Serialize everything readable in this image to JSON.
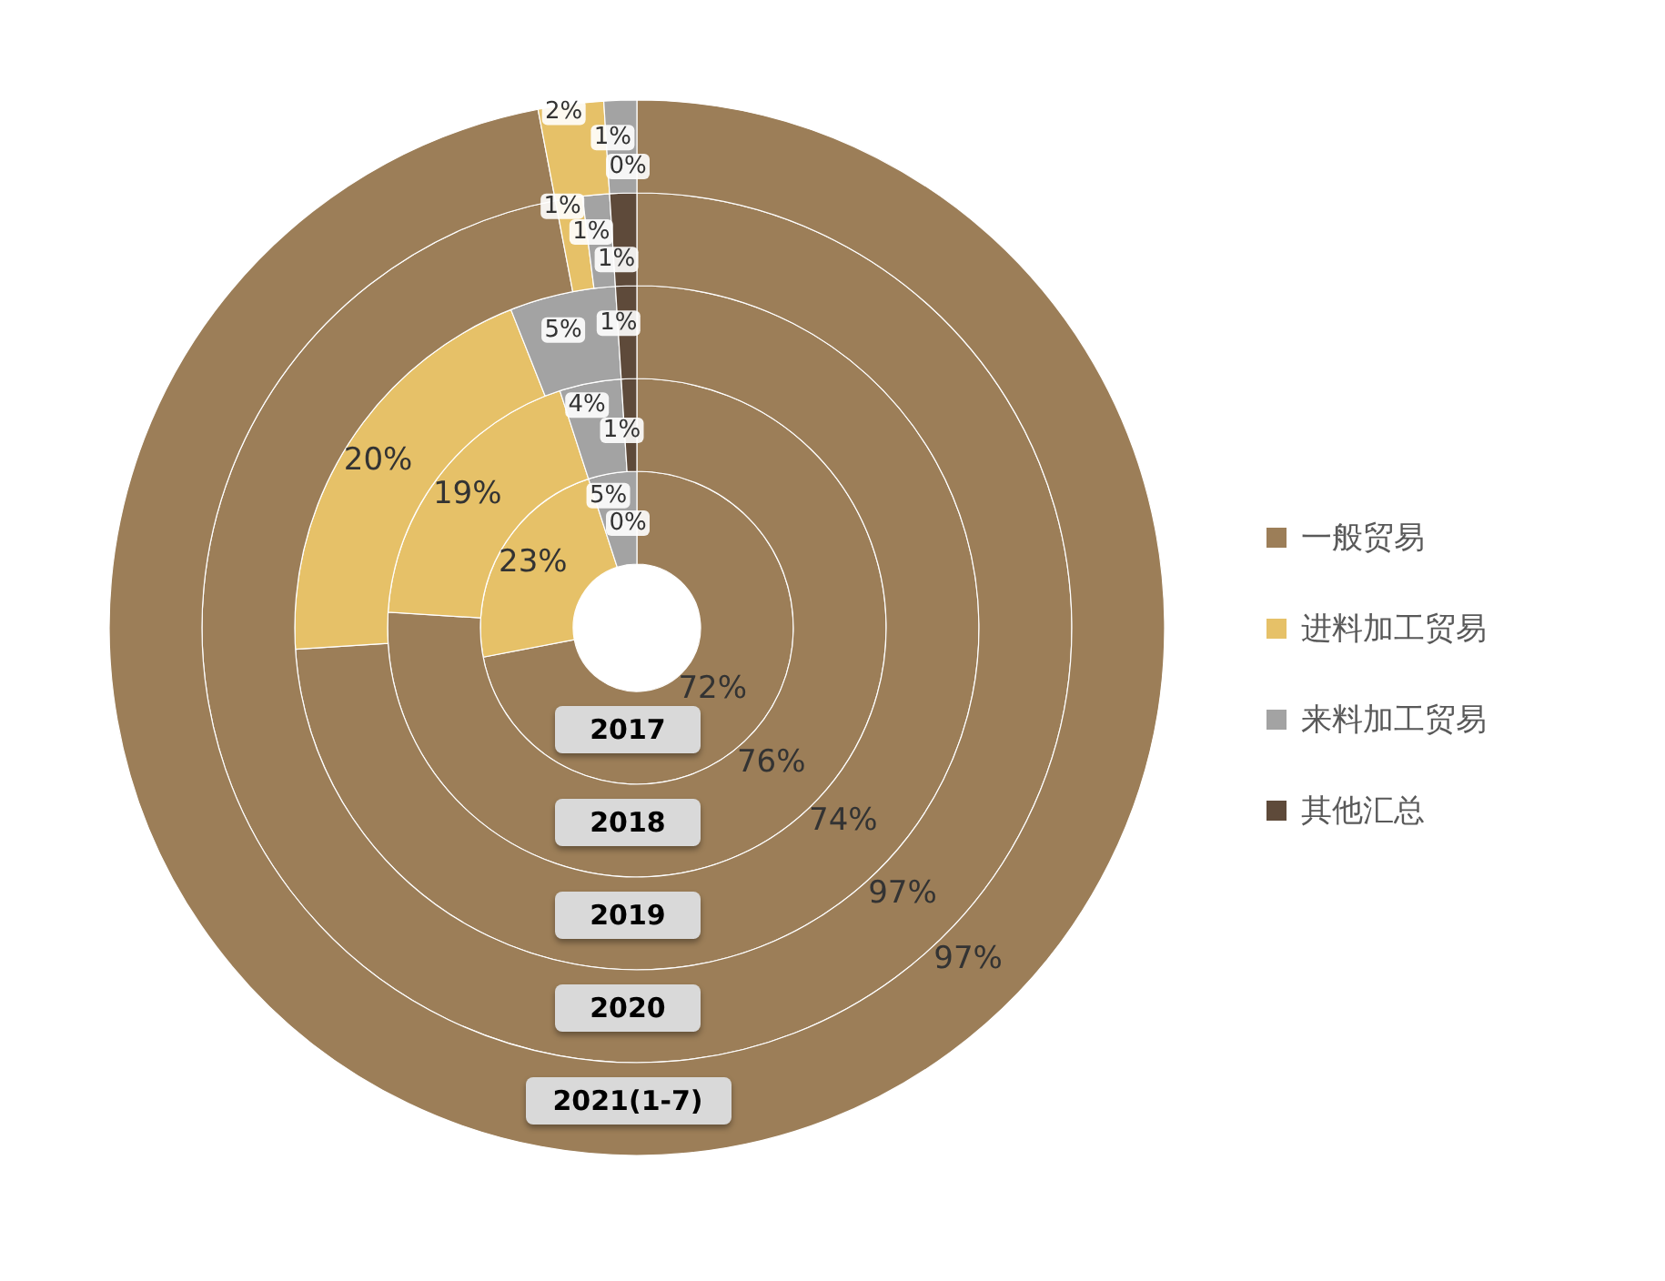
{
  "chart_data": {
    "type": "donut",
    "categories": [
      "一般贸易",
      "进料加工贸易",
      "来料加工贸易",
      "其他汇总"
    ],
    "colors": [
      "#9c7e58",
      "#e6c168",
      "#a3a3a3",
      "#5e4a3a"
    ],
    "series": [
      {
        "name": "2017",
        "values": [
          72,
          23,
          5,
          0
        ],
        "value_labels": [
          "72%",
          "23%",
          "5%",
          "0%"
        ]
      },
      {
        "name": "2018",
        "values": [
          76,
          19,
          4,
          1
        ],
        "value_labels": [
          "76%",
          "19%",
          "4%",
          "1%"
        ]
      },
      {
        "name": "2019",
        "values": [
          74,
          20,
          5,
          1
        ],
        "value_labels": [
          "74%",
          "20%",
          "5%",
          "1%"
        ]
      },
      {
        "name": "2020",
        "values": [
          97,
          1,
          1,
          1
        ],
        "value_labels": [
          "97%",
          "1%",
          "1%",
          "1%"
        ]
      },
      {
        "name": "2021(1-7)",
        "values": [
          97,
          2,
          1,
          0
        ],
        "value_labels": [
          "97%",
          "2%",
          "1%",
          "0%"
        ]
      }
    ],
    "legend": "right"
  }
}
